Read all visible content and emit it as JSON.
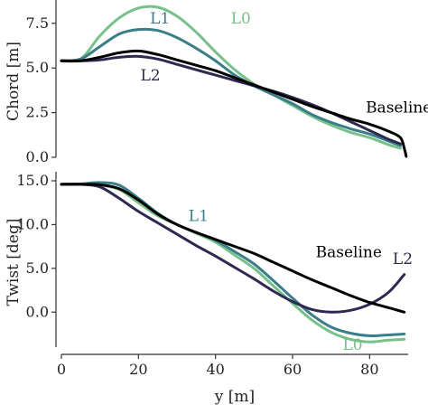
{
  "chart_data": [
    {
      "type": "line",
      "title": "",
      "xlabel": "y [m]",
      "ylabel": "Chord [m]",
      "xlim": [
        0,
        90
      ],
      "ylim": [
        0,
        8.5
      ],
      "yticks": [
        "0.0",
        "2.5",
        "5.0",
        "7.5"
      ],
      "ytick_values": [
        0,
        2.5,
        5,
        7.5
      ],
      "grid": false,
      "series": [
        {
          "name": "L0",
          "color": "#78c08a",
          "label_at": [
            44,
            7.5
          ],
          "x": [
            0,
            5,
            10,
            15,
            20,
            25,
            30,
            35,
            40,
            45,
            50,
            55,
            60,
            65,
            70,
            75,
            80,
            85,
            88
          ],
          "y": [
            5.4,
            5.5,
            6.8,
            7.8,
            8.35,
            8.4,
            7.9,
            7.0,
            5.9,
            4.9,
            4.1,
            3.5,
            2.9,
            2.3,
            1.8,
            1.4,
            1.1,
            0.7,
            0.5
          ]
        },
        {
          "name": "L1",
          "color": "#3b7d89",
          "label_at": [
            23,
            7.5
          ],
          "x": [
            0,
            5,
            10,
            15,
            20,
            25,
            30,
            35,
            40,
            45,
            50,
            55,
            60,
            65,
            70,
            75,
            80,
            85,
            88
          ],
          "y": [
            5.4,
            5.5,
            6.2,
            6.9,
            7.15,
            7.1,
            6.7,
            6.1,
            5.4,
            4.6,
            4.0,
            3.5,
            3.0,
            2.4,
            1.95,
            1.6,
            1.3,
            0.9,
            0.65
          ]
        },
        {
          "name": "L2",
          "color": "#2d2a52",
          "label_at": [
            20.5,
            4.3
          ],
          "x": [
            0,
            5,
            10,
            15,
            20,
            25,
            30,
            35,
            40,
            45,
            50,
            55,
            60,
            65,
            70,
            75,
            80,
            85,
            88
          ],
          "y": [
            5.4,
            5.4,
            5.45,
            5.6,
            5.65,
            5.5,
            5.2,
            4.9,
            4.6,
            4.3,
            4.0,
            3.7,
            3.35,
            2.95,
            2.5,
            2.0,
            1.5,
            1.0,
            0.75
          ]
        },
        {
          "name": "Baseline",
          "color": "#000000",
          "label_at": [
            79,
            2.5
          ],
          "x": [
            0,
            5,
            10,
            15,
            20,
            25,
            30,
            35,
            40,
            45,
            50,
            55,
            60,
            65,
            70,
            75,
            80,
            85,
            88,
            89,
            89.5
          ],
          "y": [
            5.4,
            5.4,
            5.6,
            5.85,
            5.95,
            5.75,
            5.45,
            5.15,
            4.85,
            4.45,
            4.05,
            3.65,
            3.25,
            2.85,
            2.5,
            2.15,
            1.85,
            1.45,
            1.1,
            0.5,
            0.05
          ]
        }
      ]
    },
    {
      "type": "line",
      "title": "",
      "xlabel": "y [m]",
      "ylabel": "Twist [deg]",
      "xlim": [
        0,
        90
      ],
      "ylim": [
        -4,
        15
      ],
      "xticks": [
        "0",
        "20",
        "40",
        "60",
        "80"
      ],
      "xtick_values": [
        0,
        20,
        40,
        60,
        80
      ],
      "yticks": [
        "0.0",
        "5.0",
        "10.0",
        "15.0"
      ],
      "ytick_values": [
        0,
        5,
        10,
        15
      ],
      "grid": false,
      "series": [
        {
          "name": "L0",
          "color": "#78c08a",
          "label_at": [
            73,
            -4.3
          ],
          "x": [
            0,
            5,
            10,
            15,
            20,
            25,
            30,
            35,
            40,
            45,
            50,
            55,
            60,
            65,
            70,
            75,
            80,
            85,
            89
          ],
          "y": [
            14.6,
            14.6,
            14.5,
            14.0,
            12.5,
            11.0,
            10.0,
            9.0,
            8.0,
            6.5,
            5.0,
            3.0,
            1.0,
            -0.9,
            -2.3,
            -3.1,
            -3.4,
            -3.2,
            -3.1
          ]
        },
        {
          "name": "L1",
          "color": "#3b7d89",
          "label_at": [
            33,
            10.4
          ],
          "x": [
            0,
            5,
            10,
            15,
            20,
            25,
            30,
            35,
            40,
            45,
            50,
            55,
            60,
            65,
            70,
            75,
            80,
            85,
            89
          ],
          "y": [
            14.6,
            14.65,
            14.8,
            14.5,
            13.0,
            11.3,
            10.0,
            9.1,
            8.2,
            6.9,
            5.5,
            3.6,
            1.6,
            -0.3,
            -1.7,
            -2.4,
            -2.7,
            -2.6,
            -2.5
          ]
        },
        {
          "name": "L2",
          "color": "#2d2a52",
          "label_at": [
            86,
            5.5
          ],
          "x": [
            0,
            5,
            10,
            15,
            20,
            25,
            30,
            35,
            40,
            45,
            50,
            55,
            60,
            65,
            70,
            75,
            80,
            85,
            89
          ],
          "y": [
            14.6,
            14.6,
            14.3,
            13.0,
            11.5,
            10.2,
            8.9,
            7.6,
            6.4,
            5.1,
            3.8,
            2.4,
            1.2,
            0.3,
            0.0,
            0.2,
            0.9,
            2.3,
            4.3
          ]
        },
        {
          "name": "Baseline",
          "color": "#000000",
          "label_at": [
            66,
            6.3
          ],
          "x": [
            0,
            5,
            10,
            15,
            20,
            25,
            30,
            35,
            40,
            45,
            50,
            55,
            60,
            65,
            70,
            75,
            80,
            85,
            89
          ],
          "y": [
            14.6,
            14.6,
            14.55,
            14.1,
            12.8,
            11.2,
            10.0,
            9.1,
            8.3,
            7.5,
            6.7,
            5.7,
            4.7,
            3.7,
            2.8,
            1.9,
            1.1,
            0.5,
            0.0
          ]
        }
      ]
    }
  ]
}
